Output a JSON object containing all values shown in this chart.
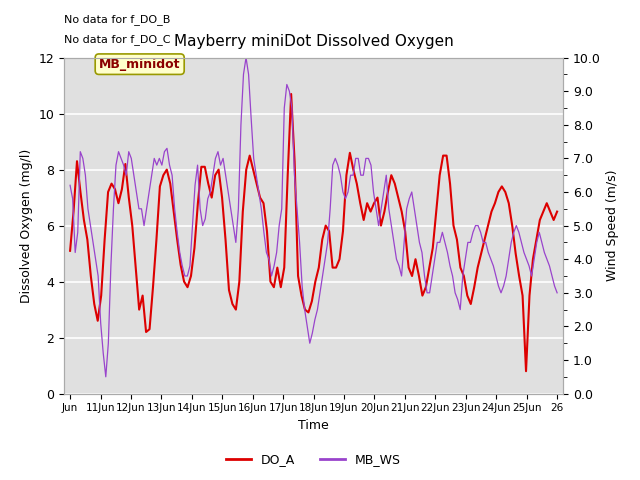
{
  "title": "Mayberry miniDot Dissolved Oxygen",
  "xlabel": "Time",
  "ylabel_left": "Dissolved Oxygen (mg/l)",
  "ylabel_right": "Wind Speed (m/s)",
  "annotation1": "No data for f_DO_B",
  "annotation2": "No data for f_DO_C",
  "legend_label": "MB_minidot",
  "legend_do": "DO_A",
  "legend_ws": "MB_WS",
  "ylim_left": [
    0,
    12
  ],
  "ylim_right": [
    0.0,
    10.0
  ],
  "yticks_left": [
    0,
    2,
    4,
    6,
    8,
    10,
    12
  ],
  "yticks_right": [
    0.0,
    1.0,
    2.0,
    3.0,
    4.0,
    5.0,
    6.0,
    7.0,
    8.0,
    9.0,
    10.0
  ],
  "color_do": "#dd0000",
  "color_ws": "#9944cc",
  "plot_bg": "#e0e0e0",
  "grid_color": "white",
  "do_lw": 1.5,
  "ws_lw": 0.9,
  "figsize": [
    6.4,
    4.8
  ],
  "dpi": 100,
  "do_data": [
    5.1,
    6.5,
    8.3,
    7.2,
    6.2,
    5.5,
    4.2,
    3.2,
    2.6,
    3.5,
    5.5,
    7.2,
    7.5,
    7.3,
    6.8,
    7.3,
    8.2,
    7.0,
    6.0,
    4.5,
    3.0,
    3.5,
    2.2,
    2.3,
    3.8,
    5.5,
    7.4,
    7.8,
    8.0,
    7.5,
    6.5,
    5.5,
    4.6,
    4.0,
    3.8,
    4.2,
    5.2,
    6.8,
    8.1,
    8.1,
    7.5,
    7.0,
    7.8,
    8.0,
    7.0,
    5.5,
    3.7,
    3.2,
    3.0,
    4.0,
    6.5,
    8.0,
    8.5,
    8.0,
    7.5,
    7.0,
    6.8,
    5.8,
    4.0,
    3.8,
    4.5,
    3.8,
    4.5,
    7.8,
    10.7,
    8.3,
    4.2,
    3.5,
    3.0,
    2.9,
    3.3,
    4.0,
    4.5,
    5.5,
    6.0,
    5.8,
    4.5,
    4.5,
    4.8,
    5.8,
    7.8,
    8.6,
    8.0,
    7.5,
    6.8,
    6.2,
    6.8,
    6.5,
    6.8,
    7.0,
    6.0,
    6.5,
    7.2,
    7.8,
    7.5,
    7.0,
    6.5,
    5.8,
    4.5,
    4.2,
    4.8,
    4.2,
    3.5,
    3.8,
    4.5,
    5.2,
    6.5,
    7.8,
    8.5,
    8.5,
    7.5,
    6.0,
    5.5,
    4.5,
    4.2,
    3.5,
    3.2,
    3.8,
    4.5,
    5.0,
    5.5,
    6.0,
    6.5,
    6.8,
    7.2,
    7.4,
    7.2,
    6.8,
    6.0,
    5.0,
    4.2,
    3.5,
    0.8,
    3.5,
    4.8,
    5.5,
    6.2,
    6.5,
    6.8,
    6.5,
    6.2,
    6.5
  ],
  "ws_data": [
    6.2,
    5.8,
    4.2,
    4.8,
    7.2,
    7.0,
    6.5,
    5.5,
    5.0,
    4.5,
    4.0,
    3.5,
    2.1,
    1.2,
    0.5,
    1.5,
    3.8,
    5.5,
    6.8,
    7.2,
    7.0,
    6.8,
    6.5,
    7.2,
    7.0,
    6.5,
    6.0,
    5.5,
    5.5,
    5.0,
    5.5,
    6.0,
    6.5,
    7.0,
    6.8,
    7.0,
    6.8,
    7.2,
    7.3,
    6.8,
    6.5,
    5.5,
    4.8,
    4.2,
    3.8,
    3.5,
    3.5,
    3.8,
    5.0,
    6.2,
    6.8,
    5.5,
    5.0,
    5.2,
    5.8,
    6.0,
    6.5,
    7.0,
    7.2,
    6.8,
    7.0,
    6.5,
    6.0,
    5.5,
    5.0,
    4.5,
    5.5,
    8.0,
    9.5,
    10.0,
    9.5,
    8.2,
    7.0,
    6.5,
    6.0,
    5.5,
    4.8,
    4.2,
    4.0,
    3.5,
    3.8,
    4.2,
    5.0,
    5.5,
    8.5,
    9.2,
    9.0,
    8.5,
    6.5,
    5.5,
    4.5,
    3.2,
    2.5,
    2.0,
    1.5,
    1.8,
    2.2,
    2.5,
    3.0,
    3.5,
    4.0,
    4.5,
    5.5,
    6.8,
    7.0,
    6.8,
    6.5,
    6.0,
    5.8,
    6.0,
    6.5,
    6.5,
    7.0,
    7.0,
    6.5,
    6.5,
    7.0,
    7.0,
    6.8,
    6.0,
    5.5,
    5.0,
    5.5,
    6.0,
    6.5,
    5.5,
    5.0,
    4.5,
    4.0,
    3.8,
    3.5,
    4.5,
    5.5,
    5.8,
    6.0,
    5.5,
    5.0,
    4.5,
    4.2,
    3.5,
    3.0,
    3.0,
    3.5,
    4.0,
    4.5,
    4.5,
    4.8,
    4.5,
    4.2,
    3.8,
    3.5,
    3.0,
    2.8,
    2.5,
    3.5,
    4.0,
    4.5,
    4.5,
    4.8,
    5.0,
    5.0,
    4.8,
    4.5,
    4.5,
    4.2,
    4.0,
    3.8,
    3.5,
    3.2,
    3.0,
    3.2,
    3.5,
    4.0,
    4.5,
    4.8,
    5.0,
    4.8,
    4.5,
    4.2,
    4.0,
    3.8,
    3.5,
    4.0,
    4.5,
    4.8,
    4.5,
    4.2,
    4.0,
    3.8,
    3.5,
    3.2,
    3.0
  ]
}
